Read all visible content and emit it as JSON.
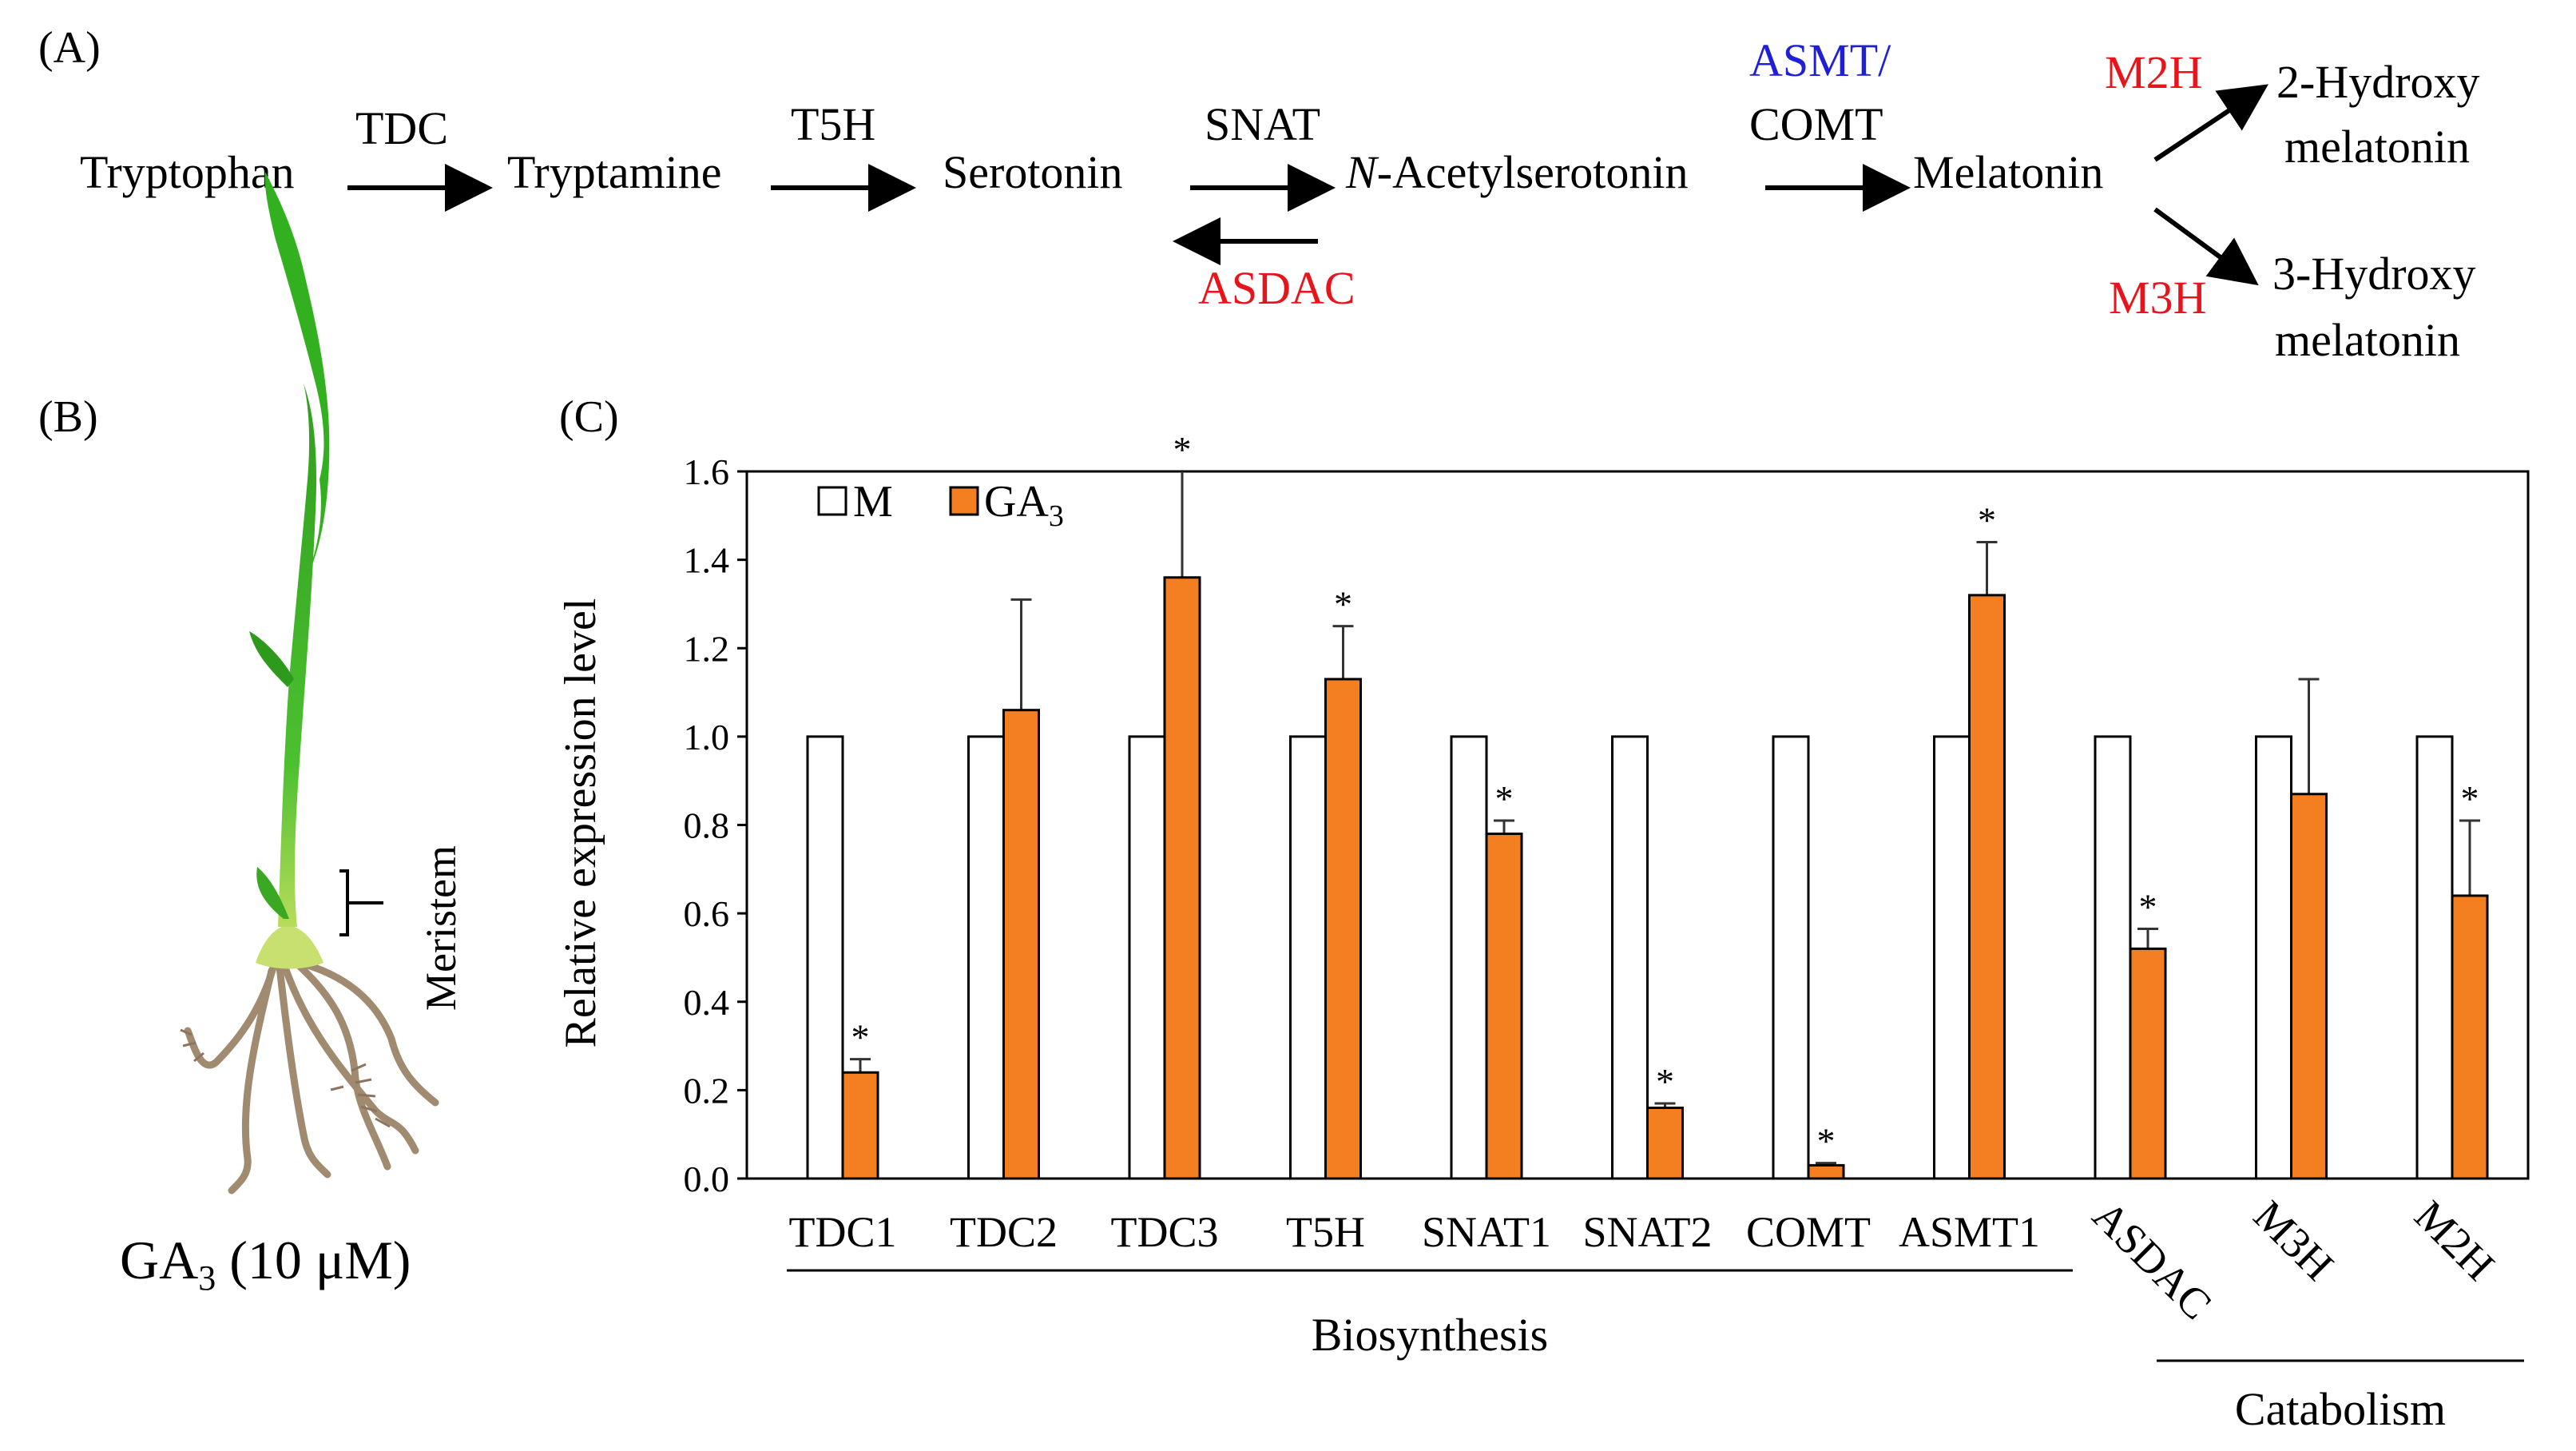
{
  "panel_labels": {
    "a": "(A)",
    "b": "(B)",
    "c": "(C)"
  },
  "colors": {
    "blue": "#1f1fd6",
    "red": "#e8141c",
    "orange": "#f47f20",
    "leaf_green": "#33b020",
    "root_brown": "#a08a70"
  },
  "pathway": {
    "tryptophan": "Tryptophan",
    "tryptamine": "Tryptamine",
    "serotonin": "Serotonin",
    "n_acetyl_prefix": "N",
    "n_acetyl_rest": "-Acetylserotonin",
    "melatonin": "Melatonin",
    "hydroxy2_line1": "2-Hydroxy",
    "hydroxy2_line2": "melatonin",
    "hydroxy3_line1": "3-Hydroxy",
    "hydroxy3_line2": "melatonin",
    "tdc": "TDC",
    "t5h": "T5H",
    "snat": "SNAT",
    "asdac": "ASDAC",
    "asmt": "ASMT/",
    "comt": "COMT",
    "m2h": "M2H",
    "m3h": "M3H"
  },
  "seedling": {
    "meristem": "Meristem",
    "treatment_prefix": "GA",
    "treatment_sub": "3",
    "treatment_suffix": " (10 μM)"
  },
  "chart_data": {
    "type": "bar",
    "title": "",
    "xlabel": "",
    "ylabel": "Relative expression level",
    "ylim": [
      0,
      1.6
    ],
    "yticks": [
      0.0,
      0.2,
      0.4,
      0.6,
      0.8,
      1.0,
      1.2,
      1.4,
      1.6
    ],
    "ytick_labels": [
      "0.0",
      "0.2",
      "0.4",
      "0.6",
      "0.8",
      "1.0",
      "1.2",
      "1.4",
      "1.6"
    ],
    "categories": [
      "TDC1",
      "TDC2",
      "TDC3",
      "T5H",
      "SNAT1",
      "SNAT2",
      "COMT",
      "ASMT1",
      "ASDAC",
      "M3H",
      "M2H"
    ],
    "legend": {
      "m": "M",
      "ga_prefix": "GA",
      "ga_sub": "3",
      "position": "top-left"
    },
    "series": [
      {
        "name": "M",
        "values": [
          1,
          1,
          1,
          1,
          1,
          1,
          1,
          1,
          1,
          1,
          1
        ]
      },
      {
        "name": "GA3",
        "values": [
          0.24,
          1.06,
          1.36,
          1.13,
          0.78,
          0.16,
          0.03,
          1.32,
          0.52,
          0.87,
          0.64
        ],
        "errors": [
          0.03,
          0.25,
          0.32,
          0.12,
          0.03,
          0.01,
          0.005,
          0.12,
          0.045,
          0.26,
          0.17
        ],
        "significant": [
          true,
          false,
          true,
          true,
          true,
          true,
          true,
          true,
          true,
          false,
          true
        ]
      }
    ],
    "significance_marker": "*",
    "groups": [
      {
        "label": "Biosynthesis",
        "categories": [
          "TDC1",
          "TDC2",
          "TDC3",
          "T5H",
          "SNAT1",
          "SNAT2",
          "COMT",
          "ASMT1"
        ]
      },
      {
        "label": "Catabolism",
        "categories": [
          "ASDAC",
          "M3H",
          "M2H"
        ]
      }
    ]
  }
}
